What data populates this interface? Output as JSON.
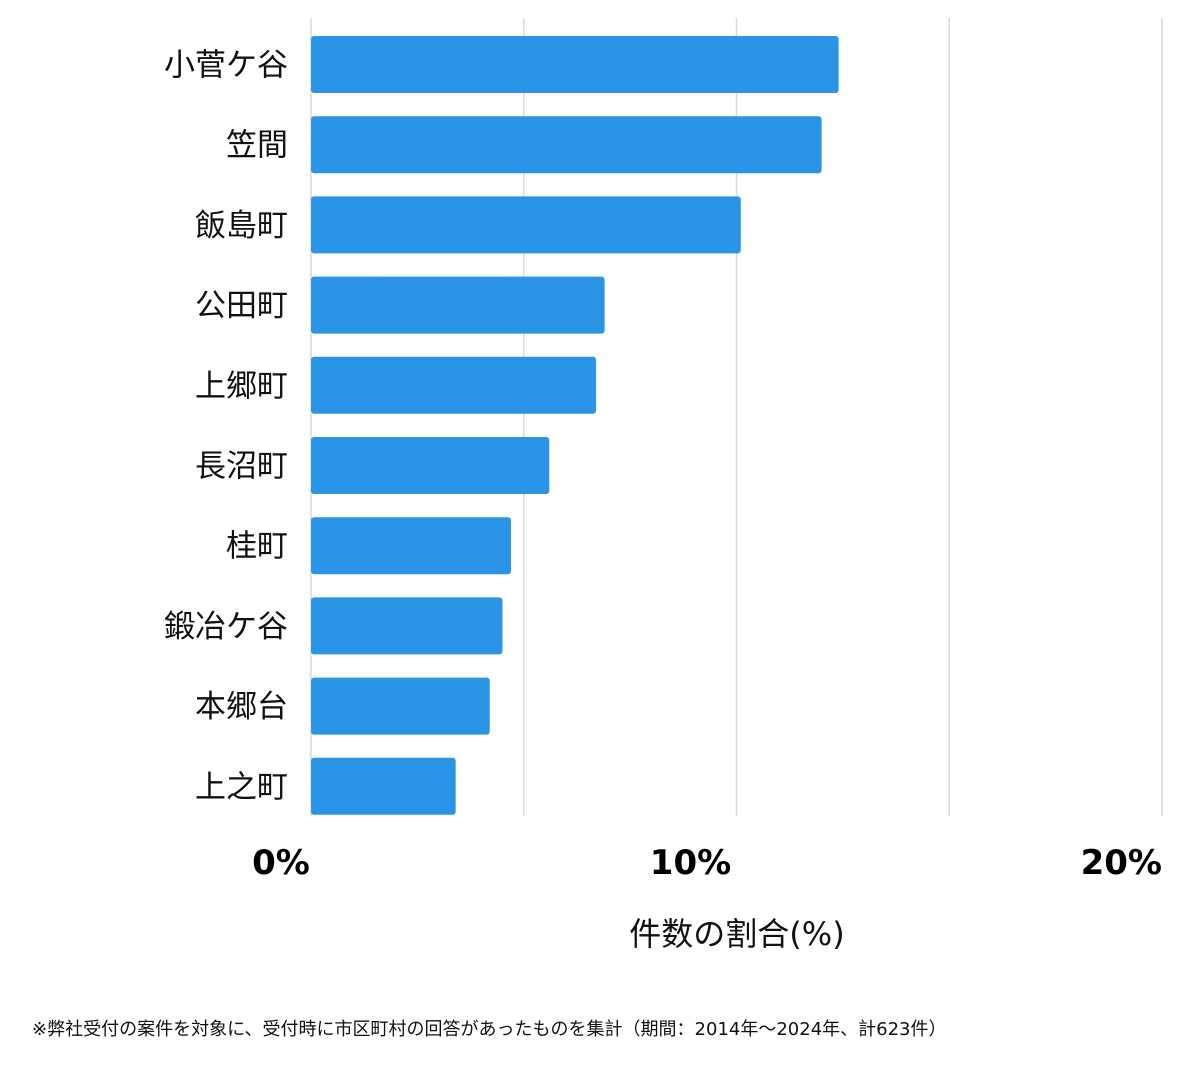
{
  "chart_data": {
    "type": "bar",
    "orientation": "horizontal",
    "categories": [
      "小菅ケ谷",
      "笠間",
      "飯島町",
      "公田町",
      "上郷町",
      "長沼町",
      "桂町",
      "鍛冶ケ谷",
      "本郷台",
      "上之町"
    ],
    "values": [
      12.4,
      12.0,
      10.1,
      6.9,
      6.7,
      5.6,
      4.7,
      4.5,
      4.2,
      3.4
    ],
    "xlim": [
      0,
      20
    ],
    "tick_labels": [
      "0%",
      "10%",
      "20%"
    ],
    "tick_values": [
      0,
      10,
      20
    ],
    "gridline_values": [
      0,
      5,
      10,
      15,
      20
    ],
    "xlabel": "件数の割合(%)",
    "title": "",
    "grid": true,
    "bar_color": "#2a95e6",
    "grid_color": "#d9d9d9"
  },
  "footnote": "※弊社受付の案件を対象に、受付時に市区町村の回答があったものを集計（期間：2014年～2024年、計623件）"
}
